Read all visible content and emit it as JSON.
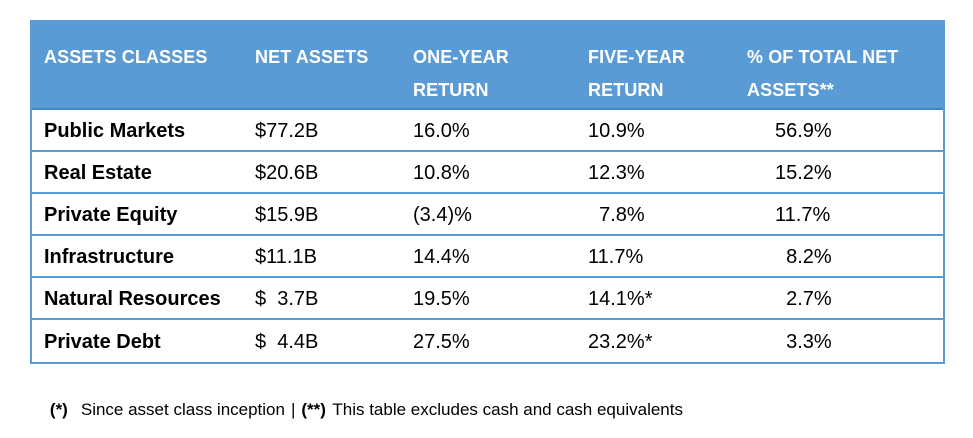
{
  "colors": {
    "header_background": "#5B9BD5",
    "table_border": "#5B9BD5",
    "header_bottom_border": "#4A84C4",
    "header_text": "#FFFFFF",
    "body_text": "#000000"
  },
  "table": {
    "columns": [
      {
        "label_line1": "ASSETS CLASSES",
        "label_line2": ""
      },
      {
        "label_line1": "NET ASSETS",
        "label_line2": ""
      },
      {
        "label_line1": "ONE-YEAR",
        "label_line2": "RETURN"
      },
      {
        "label_line1": "FIVE-YEAR",
        "label_line2": "RETURN"
      },
      {
        "label_line1": "% OF TOTAL NET",
        "label_line2": "ASSETS**"
      }
    ],
    "rows": [
      {
        "asset_class": "Public Markets",
        "net_assets": "$77.2B",
        "one_year_return": "16.0%",
        "five_year_return": "10.9%",
        "pct_of_total_net_assets": "56.9%"
      },
      {
        "asset_class": "Real Estate",
        "net_assets": "$20.6B",
        "one_year_return": "10.8%",
        "five_year_return": "12.3%",
        "pct_of_total_net_assets": "15.2%"
      },
      {
        "asset_class": "Private Equity",
        "net_assets": "$15.9B",
        "one_year_return": "(3.4)%",
        "five_year_return": "  7.8%",
        "pct_of_total_net_assets": "11.7%"
      },
      {
        "asset_class": "Infrastructure",
        "net_assets": "$11.1B",
        "one_year_return": "14.4%",
        "five_year_return": "11.7%",
        "pct_of_total_net_assets": "  8.2%"
      },
      {
        "asset_class": "Natural Resources",
        "net_assets": "$  3.7B",
        "one_year_return": "19.5%",
        "five_year_return": "14.1%*",
        "pct_of_total_net_assets": "  2.7%"
      },
      {
        "asset_class": "Private Debt",
        "net_assets": "$  4.4B",
        "one_year_return": "27.5%",
        "five_year_return": "23.2%*",
        "pct_of_total_net_assets": "  3.3%"
      }
    ]
  },
  "footnote": {
    "marker_1": "(*)",
    "text_1": "Since asset class inception",
    "separator": "|",
    "marker_2": "(**)",
    "text_2": "This table excludes cash and cash equivalents"
  }
}
